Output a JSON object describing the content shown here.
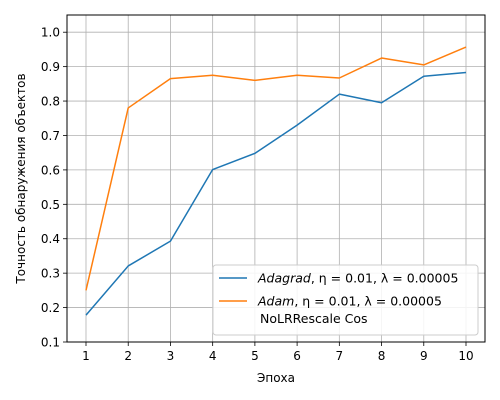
{
  "chart_data": {
    "type": "line",
    "xlabel": "Эпоха",
    "ylabel": "Точность обнаружения объектов",
    "x": [
      1,
      2,
      3,
      4,
      5,
      6,
      7,
      8,
      9,
      10
    ],
    "xlim": [
      0.55,
      10.45
    ],
    "ylim": [
      0.1,
      1.05
    ],
    "xticks": [
      "1",
      "2",
      "3",
      "4",
      "5",
      "6",
      "7",
      "8",
      "9",
      "10"
    ],
    "yticks": [
      "0.1",
      "0.2",
      "0.3",
      "0.4",
      "0.5",
      "0.6",
      "0.7",
      "0.8",
      "0.9",
      "1.0"
    ],
    "grid": true,
    "legend_position": "lower-right",
    "series": [
      {
        "name_italic": "Adagrad",
        "name_rest": ", η = 0.01, λ = 0.00005",
        "name_line2": "",
        "color": "#1f77b4",
        "values": [
          0.178,
          0.321,
          0.393,
          0.601,
          0.648,
          0.73,
          0.82,
          0.795,
          0.872,
          0.883
        ]
      },
      {
        "name_italic": "Adam",
        "name_rest": ", η = 0.01, λ = 0.00005",
        "name_line2": "NoLRRescale Cos",
        "color": "#ff7f0e",
        "values": [
          0.25,
          0.78,
          0.865,
          0.875,
          0.86,
          0.875,
          0.867,
          0.925,
          0.905,
          0.957
        ]
      }
    ]
  }
}
